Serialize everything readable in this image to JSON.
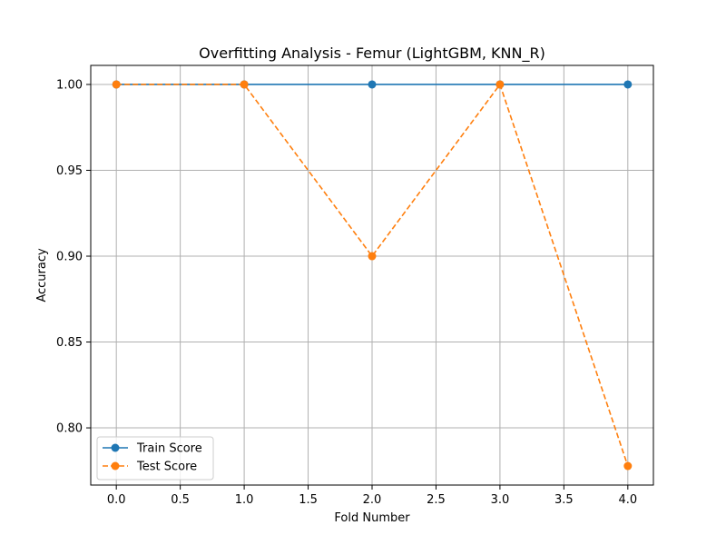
{
  "chart_data": {
    "type": "line",
    "title": "Overfitting Analysis - Femur (LightGBM, KNN_R)",
    "xlabel": "Fold Number",
    "ylabel": "Accuracy",
    "x": [
      0,
      1,
      2,
      3,
      4
    ],
    "xlim": [
      -0.2,
      4.2
    ],
    "ylim": [
      0.7667,
      1.0111
    ],
    "xticks": [
      0.0,
      0.5,
      1.0,
      1.5,
      2.0,
      2.5,
      3.0,
      3.5,
      4.0
    ],
    "xtick_labels": [
      "0.0",
      "0.5",
      "1.0",
      "1.5",
      "2.0",
      "2.5",
      "3.0",
      "3.5",
      "4.0"
    ],
    "yticks": [
      0.8,
      0.85,
      0.9,
      0.95,
      1.0
    ],
    "ytick_labels": [
      "0.80",
      "0.85",
      "0.90",
      "0.95",
      "1.00"
    ],
    "grid": true,
    "legend_position": "lower-left",
    "series": [
      {
        "name": "Train Score",
        "values": [
          1.0,
          1.0,
          1.0,
          1.0,
          1.0
        ],
        "color": "#1f77b4",
        "linestyle": "solid",
        "marker": "circle"
      },
      {
        "name": "Test Score",
        "values": [
          1.0,
          1.0,
          0.9,
          1.0,
          0.7778
        ],
        "color": "#ff7f0e",
        "linestyle": "dashed",
        "marker": "circle"
      }
    ]
  }
}
